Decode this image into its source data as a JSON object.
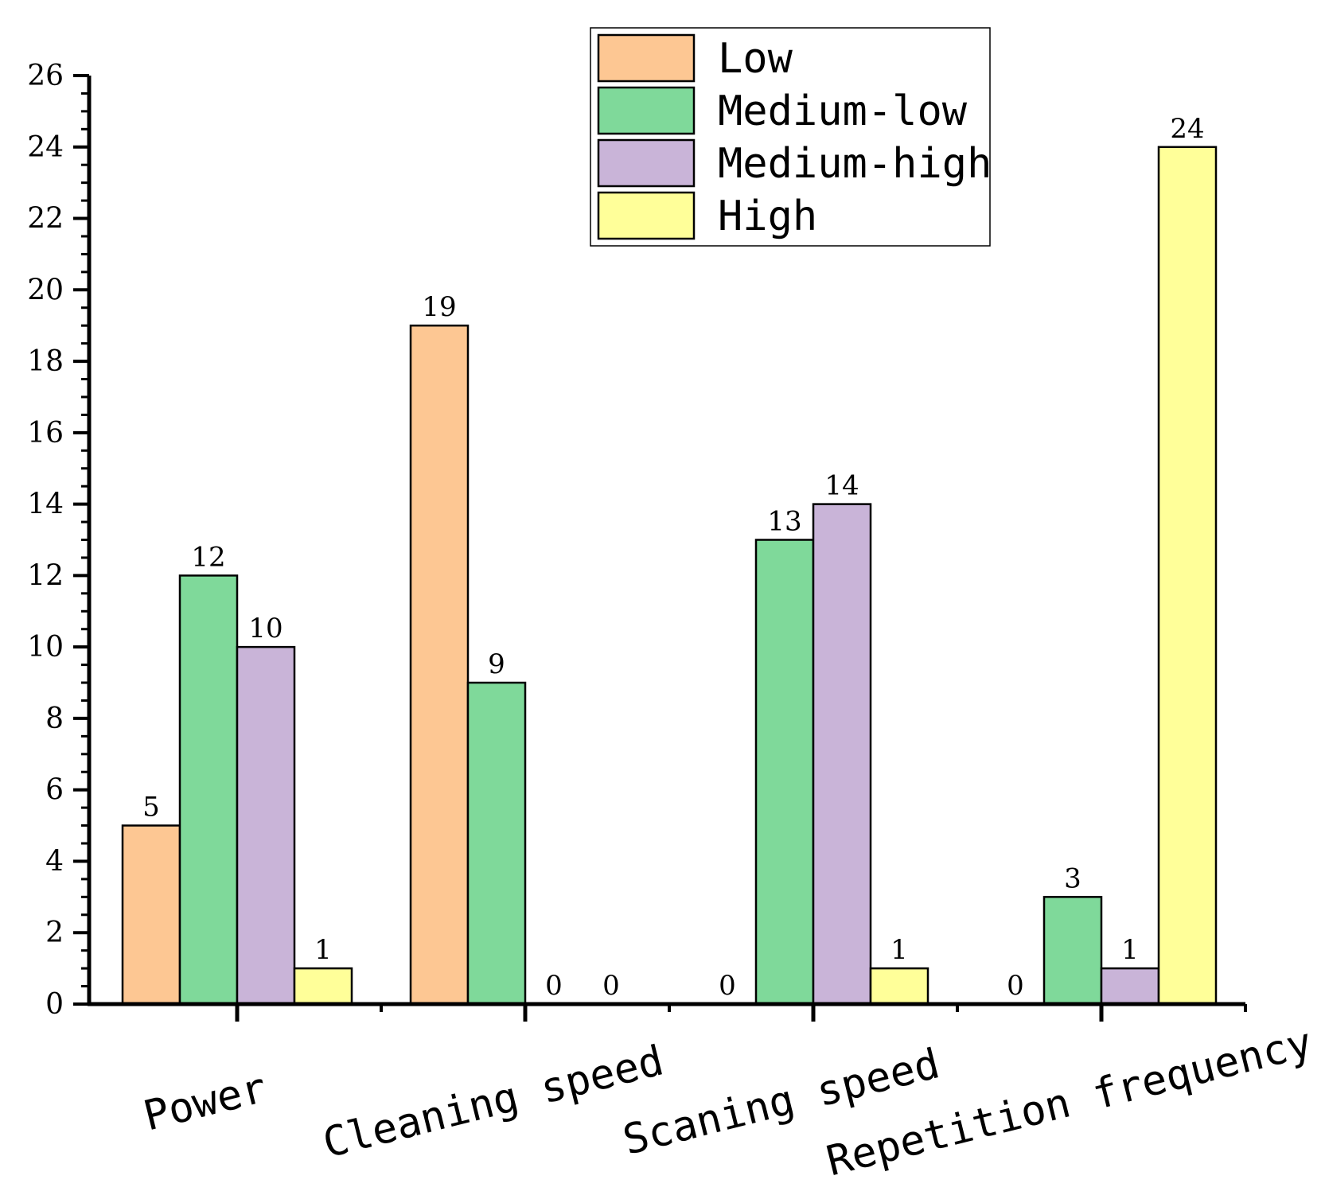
{
  "chart_data": {
    "type": "bar",
    "title": "",
    "xlabel": "",
    "ylabel": "",
    "categories": [
      "Power",
      "Cleaning speed",
      "Scaning speed",
      "Repetition frequency"
    ],
    "series": [
      {
        "name": "Low",
        "color": "#FDC793",
        "values": [
          5,
          19,
          0,
          0
        ]
      },
      {
        "name": "Medium-low",
        "color": "#7FD99A",
        "values": [
          12,
          9,
          13,
          3
        ]
      },
      {
        "name": "Medium-high",
        "color": "#C9B4D8",
        "values": [
          10,
          0,
          14,
          1
        ]
      },
      {
        "name": "High",
        "color": "#FFFF99",
        "values": [
          1,
          0,
          1,
          24
        ]
      }
    ],
    "ylim": [
      0,
      26
    ],
    "yticks": [
      0,
      2,
      4,
      6,
      8,
      10,
      12,
      14,
      16,
      18,
      20,
      22,
      24,
      26
    ],
    "legend_position": "top-right",
    "grid": false
  }
}
